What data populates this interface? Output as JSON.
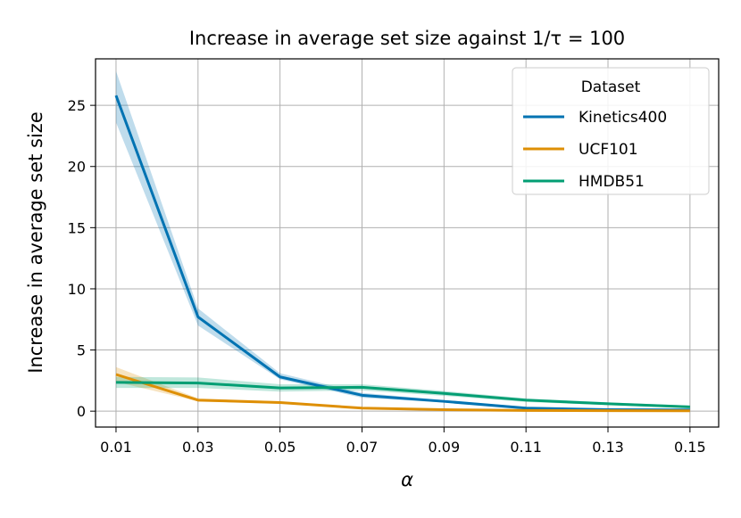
{
  "chart_data": {
    "type": "line",
    "title": "Increase in average set size against 1/τ = 100",
    "xlabel": "α",
    "ylabel": "Increase in average set size",
    "x": [
      0.01,
      0.03,
      0.05,
      0.07,
      0.09,
      0.11,
      0.13,
      0.15
    ],
    "xticks": [
      "0.01",
      "0.03",
      "0.05",
      "0.07",
      "0.09",
      "0.11",
      "0.13",
      "0.15"
    ],
    "yticks": [
      0,
      5,
      10,
      15,
      20,
      25
    ],
    "xlim": [
      0.005,
      0.157
    ],
    "ylim": [
      -1.3,
      28.8
    ],
    "grid": true,
    "legend": {
      "title": "Dataset",
      "position": "top-right"
    },
    "series": [
      {
        "name": "Kinetics400",
        "color": "#0173b2",
        "values": [
          25.8,
          7.7,
          2.8,
          1.3,
          0.8,
          0.25,
          0.12,
          0.1
        ],
        "lower": [
          23.6,
          7.0,
          2.6,
          1.1,
          0.7,
          0.2,
          0.1,
          0.08
        ],
        "upper": [
          27.8,
          8.4,
          3.1,
          1.5,
          0.9,
          0.35,
          0.18,
          0.14
        ]
      },
      {
        "name": "UCF101",
        "color": "#de8f05",
        "values": [
          3.0,
          0.9,
          0.7,
          0.25,
          0.12,
          0.06,
          0.04,
          0.03
        ],
        "lower": [
          2.4,
          0.8,
          0.6,
          0.2,
          0.08,
          0.03,
          0.02,
          0.01
        ],
        "upper": [
          3.6,
          1.05,
          0.8,
          0.32,
          0.16,
          0.09,
          0.06,
          0.05
        ]
      },
      {
        "name": "HMDB51",
        "color": "#029e73",
        "values": [
          2.35,
          2.3,
          1.9,
          1.95,
          1.45,
          0.9,
          0.6,
          0.35
        ],
        "lower": [
          1.9,
          1.9,
          1.6,
          1.7,
          1.25,
          0.75,
          0.5,
          0.25
        ],
        "upper": [
          2.8,
          2.75,
          2.2,
          2.2,
          1.65,
          1.05,
          0.72,
          0.45
        ]
      }
    ]
  }
}
